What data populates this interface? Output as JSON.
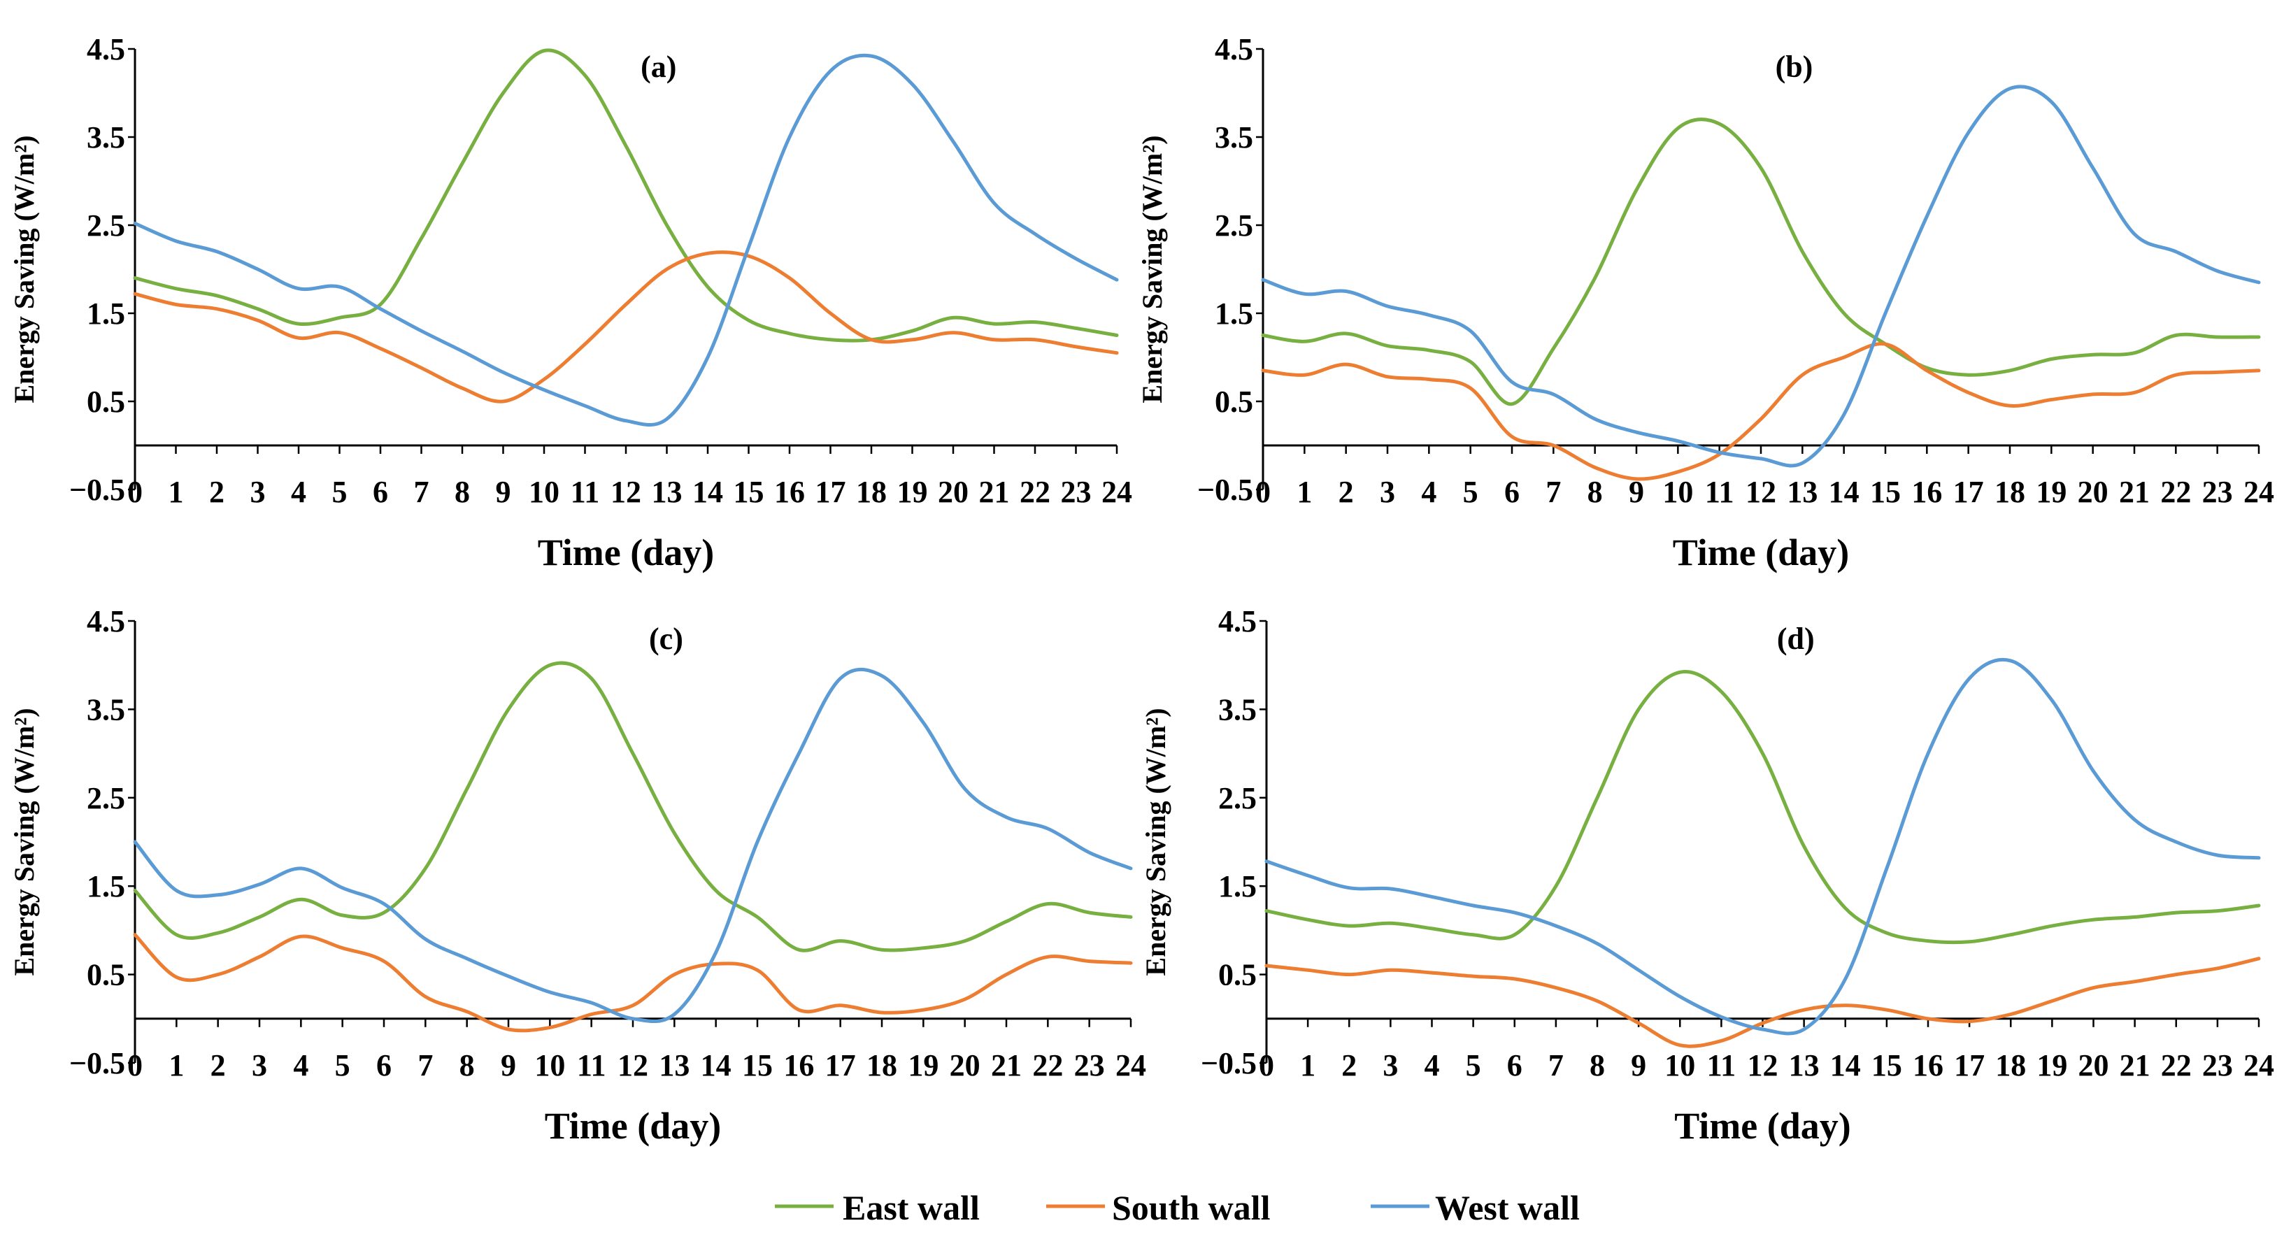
{
  "colors": {
    "east": "#77b041",
    "south": "#ed7d31",
    "west": "#5b9bd5"
  },
  "legend": [
    {
      "label": "East wall",
      "color_key": "east"
    },
    {
      "label": "South wall",
      "color_key": "south"
    },
    {
      "label": "West wall",
      "color_key": "west"
    }
  ],
  "chart_data": [
    {
      "type": "line",
      "title": "(a)",
      "xlabel": "Time (day)",
      "ylabel": "Energy Saving (W/m²)",
      "ylim": [
        -0.5,
        4.5
      ],
      "yticks": [
        -0.5,
        0.5,
        1.5,
        2.5,
        3.5,
        4.5
      ],
      "ytick_labels": [
        "-0.5",
        "0.5",
        "1.5",
        "2.5",
        "3.5",
        "4.5"
      ],
      "xlim": [
        0,
        24
      ],
      "xticks": [
        0,
        1,
        2,
        3,
        4,
        5,
        6,
        7,
        8,
        9,
        10,
        11,
        12,
        13,
        14,
        15,
        16,
        17,
        18,
        19,
        20,
        21,
        22,
        23,
        24
      ],
      "x": [
        0,
        1,
        2,
        3,
        4,
        5,
        6,
        7,
        8,
        9,
        10,
        11,
        12,
        13,
        14,
        15,
        16,
        17,
        18,
        19,
        20,
        21,
        22,
        23,
        24
      ],
      "series": [
        {
          "name": "East wall",
          "color_key": "east",
          "values": [
            1.9,
            1.78,
            1.7,
            1.55,
            1.38,
            1.45,
            1.6,
            2.35,
            3.2,
            4.0,
            4.48,
            4.2,
            3.4,
            2.5,
            1.8,
            1.42,
            1.27,
            1.2,
            1.2,
            1.3,
            1.45,
            1.38,
            1.4,
            1.33,
            1.25
          ]
        },
        {
          "name": "South wall",
          "color_key": "south",
          "values": [
            1.72,
            1.6,
            1.55,
            1.42,
            1.22,
            1.28,
            1.1,
            0.88,
            0.65,
            0.5,
            0.75,
            1.15,
            1.6,
            2.0,
            2.18,
            2.15,
            1.9,
            1.5,
            1.2,
            1.2,
            1.28,
            1.2,
            1.2,
            1.12,
            1.05
          ]
        },
        {
          "name": "West wall",
          "color_key": "west",
          "values": [
            2.52,
            2.32,
            2.2,
            2.0,
            1.78,
            1.8,
            1.55,
            1.3,
            1.07,
            0.83,
            0.63,
            0.45,
            0.28,
            0.3,
            1.0,
            2.25,
            3.5,
            4.25,
            4.42,
            4.1,
            3.45,
            2.75,
            2.4,
            2.12,
            1.88
          ]
        }
      ]
    },
    {
      "type": "line",
      "title": "(b)",
      "xlabel": "Time (day)",
      "ylabel": "Energy Saving (W/m²)",
      "ylim": [
        -0.5,
        4.5
      ],
      "yticks": [
        -0.5,
        0.5,
        1.5,
        2.5,
        3.5,
        4.5
      ],
      "ytick_labels": [
        "-0.5",
        "0.5",
        "1.5",
        "2.5",
        "3.5",
        "4.5"
      ],
      "xlim": [
        0,
        24
      ],
      "xticks": [
        0,
        1,
        2,
        3,
        4,
        5,
        6,
        7,
        8,
        9,
        10,
        11,
        12,
        13,
        14,
        15,
        16,
        17,
        18,
        19,
        20,
        21,
        22,
        23,
        24
      ],
      "x": [
        0,
        1,
        2,
        3,
        4,
        5,
        6,
        7,
        8,
        9,
        10,
        11,
        12,
        13,
        14,
        15,
        16,
        17,
        18,
        19,
        20,
        21,
        22,
        23,
        24
      ],
      "series": [
        {
          "name": "East wall",
          "color_key": "east",
          "values": [
            1.25,
            1.18,
            1.27,
            1.13,
            1.08,
            0.95,
            0.47,
            1.1,
            1.9,
            2.9,
            3.6,
            3.65,
            3.15,
            2.2,
            1.5,
            1.15,
            0.88,
            0.8,
            0.85,
            0.98,
            1.03,
            1.05,
            1.25,
            1.23,
            1.23
          ]
        },
        {
          "name": "South wall",
          "color_key": "south",
          "values": [
            0.85,
            0.8,
            0.92,
            0.78,
            0.75,
            0.65,
            0.1,
            0.0,
            -0.25,
            -0.38,
            -0.3,
            -0.1,
            0.3,
            0.8,
            1.0,
            1.15,
            0.85,
            0.6,
            0.45,
            0.52,
            0.58,
            0.6,
            0.8,
            0.83,
            0.85
          ]
        },
        {
          "name": "West wall",
          "color_key": "west",
          "values": [
            1.88,
            1.72,
            1.75,
            1.58,
            1.48,
            1.3,
            0.72,
            0.58,
            0.3,
            0.15,
            0.05,
            -0.08,
            -0.15,
            -0.2,
            0.35,
            1.5,
            2.6,
            3.55,
            4.05,
            3.9,
            3.15,
            2.4,
            2.2,
            1.98,
            1.85
          ]
        }
      ]
    },
    {
      "type": "line",
      "title": "(c)",
      "xlabel": "Time (day)",
      "ylabel": "Energy Saving (W/m²)",
      "ylim": [
        -0.5,
        4.5
      ],
      "yticks": [
        -0.5,
        0.5,
        1.5,
        2.5,
        3.5,
        4.5
      ],
      "ytick_labels": [
        "-0.5",
        "0.5",
        "1.5",
        "2.5",
        "3.5",
        "4.5"
      ],
      "xlim": [
        0,
        24
      ],
      "xticks": [
        0,
        1,
        2,
        3,
        4,
        5,
        6,
        7,
        8,
        9,
        10,
        11,
        12,
        13,
        14,
        15,
        16,
        17,
        18,
        19,
        20,
        21,
        22,
        23,
        24
      ],
      "x": [
        0,
        1,
        2,
        3,
        4,
        5,
        6,
        7,
        8,
        9,
        10,
        11,
        12,
        13,
        14,
        15,
        16,
        17,
        18,
        19,
        20,
        21,
        22,
        23,
        24
      ],
      "series": [
        {
          "name": "East wall",
          "color_key": "east",
          "values": [
            1.45,
            0.95,
            0.97,
            1.15,
            1.35,
            1.17,
            1.2,
            1.7,
            2.6,
            3.5,
            4.0,
            3.85,
            3.0,
            2.1,
            1.45,
            1.15,
            0.78,
            0.88,
            0.78,
            0.8,
            0.88,
            1.1,
            1.3,
            1.2,
            1.15
          ]
        },
        {
          "name": "South wall",
          "color_key": "south",
          "values": [
            0.95,
            0.47,
            0.5,
            0.7,
            0.93,
            0.8,
            0.65,
            0.25,
            0.08,
            -0.12,
            -0.1,
            0.05,
            0.15,
            0.5,
            0.62,
            0.55,
            0.1,
            0.15,
            0.07,
            0.1,
            0.22,
            0.5,
            0.7,
            0.65,
            0.63
          ]
        },
        {
          "name": "West wall",
          "color_key": "west",
          "values": [
            2.0,
            1.45,
            1.4,
            1.52,
            1.7,
            1.48,
            1.3,
            0.9,
            0.68,
            0.48,
            0.3,
            0.18,
            0.0,
            0.05,
            0.75,
            2.0,
            3.0,
            3.85,
            3.88,
            3.35,
            2.6,
            2.28,
            2.15,
            1.88,
            1.7
          ]
        }
      ]
    },
    {
      "type": "line",
      "title": "(d)",
      "xlabel": "Time (day)",
      "ylabel": "Energy Saving (W/m²)",
      "ylim": [
        -0.5,
        4.5
      ],
      "yticks": [
        -0.5,
        0.5,
        1.5,
        2.5,
        3.5,
        4.5
      ],
      "ytick_labels": [
        "-0.5",
        "0.5",
        "1.5",
        "2.5",
        "3.5",
        "4.5"
      ],
      "xlim": [
        0,
        24
      ],
      "xticks": [
        0,
        1,
        2,
        3,
        4,
        5,
        6,
        7,
        8,
        9,
        10,
        11,
        12,
        13,
        14,
        15,
        16,
        17,
        18,
        19,
        20,
        21,
        22,
        23,
        24
      ],
      "x": [
        0,
        1,
        2,
        3,
        4,
        5,
        6,
        7,
        8,
        9,
        10,
        11,
        12,
        13,
        14,
        15,
        16,
        17,
        18,
        19,
        20,
        21,
        22,
        23,
        24
      ],
      "series": [
        {
          "name": "East wall",
          "color_key": "east",
          "values": [
            1.22,
            1.12,
            1.05,
            1.08,
            1.02,
            0.95,
            0.95,
            1.5,
            2.5,
            3.5,
            3.92,
            3.7,
            3.0,
            1.95,
            1.25,
            0.97,
            0.88,
            0.87,
            0.95,
            1.05,
            1.12,
            1.15,
            1.2,
            1.22,
            1.28
          ]
        },
        {
          "name": "South wall",
          "color_key": "south",
          "values": [
            0.6,
            0.55,
            0.5,
            0.55,
            0.52,
            0.48,
            0.45,
            0.35,
            0.2,
            -0.05,
            -0.3,
            -0.25,
            -0.05,
            0.1,
            0.15,
            0.1,
            0.0,
            -0.03,
            0.05,
            0.2,
            0.35,
            0.42,
            0.5,
            0.57,
            0.68
          ]
        },
        {
          "name": "West wall",
          "color_key": "west",
          "values": [
            1.78,
            1.62,
            1.48,
            1.47,
            1.38,
            1.28,
            1.2,
            1.05,
            0.85,
            0.55,
            0.25,
            0.02,
            -0.12,
            -0.12,
            0.45,
            1.7,
            3.0,
            3.85,
            4.05,
            3.6,
            2.8,
            2.25,
            2.0,
            1.85,
            1.82
          ]
        }
      ]
    }
  ]
}
